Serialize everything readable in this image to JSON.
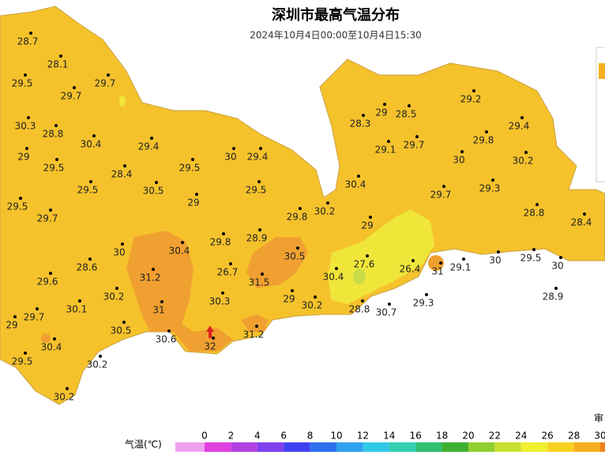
{
  "header": {
    "title": "深圳市最高气温分布",
    "subtitle": "2024年10月4日00:00至10月4日15:30"
  },
  "stations": [
    28.7,
    28.1,
    29.5,
    29.7,
    29.7,
    30.3,
    28.8,
    30.4,
    29.4,
    29,
    29.5,
    28.4,
    29.5,
    30,
    29.4,
    29.5,
    30.5,
    29.5,
    29,
    29.5,
    29.7,
    29.8,
    30.2,
    29,
    29.8,
    28.9,
    30,
    30.4,
    30.5,
    28.6,
    27.6,
    26.4,
    31,
    29.1,
    30,
    29.5,
    30,
    31.2,
    26.7,
    31.5,
    30.4,
    29.6,
    30.2,
    30.3,
    29,
    30.2,
    28.8,
    30.7,
    29.3,
    28.9,
    30.1,
    31,
    29.7,
    30.5,
    31.2,
    29,
    30.6,
    30.4,
    32,
    29.5,
    30.2,
    30.2,
    28.3,
    29,
    28.5,
    29.2,
    29.4,
    29.1,
    29.7,
    29.8,
    30,
    30.2,
    30.4,
    29.3,
    29.7,
    28.8,
    28.4
  ],
  "note": "审",
  "legend": {
    "label": "气温(℃)",
    "ticks": [
      0,
      2,
      4,
      6,
      8,
      10,
      12,
      14,
      16,
      18,
      20,
      22,
      24,
      26,
      28,
      30
    ],
    "colors": [
      "#f0a0f0",
      "#e040e0",
      "#b040e0",
      "#8040f0",
      "#4040f0",
      "#3070f0",
      "#30a0f0",
      "#30c8e8",
      "#30d0b0",
      "#30c070",
      "#40b030",
      "#90d030",
      "#c8e030",
      "#f0f030",
      "#f8d020",
      "#f5b020",
      "#f08020"
    ]
  }
}
